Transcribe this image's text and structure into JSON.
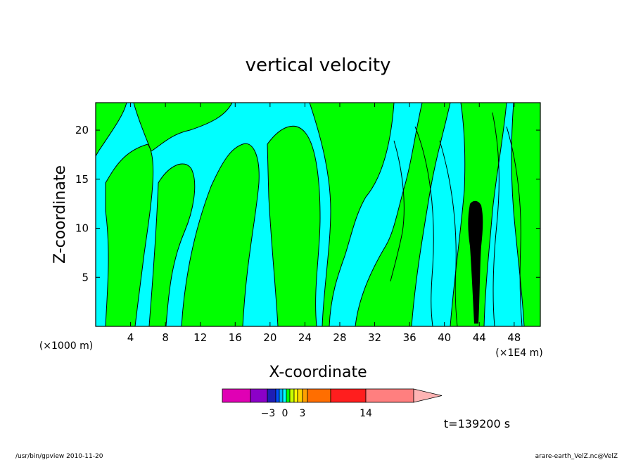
{
  "chart_data": {
    "type": "heatmap",
    "title": "vertical velocity",
    "xlabel": "X-coordinate",
    "ylabel": "Z-coordinate",
    "x_unit": "(×1E4 m)",
    "y_unit": "(×1000 m)",
    "xlim": [
      0,
      51
    ],
    "ylim": [
      0,
      22.8
    ],
    "x_ticks": [
      4,
      8,
      12,
      16,
      20,
      24,
      28,
      32,
      36,
      40,
      44,
      48
    ],
    "y_ticks": [
      5,
      10,
      15,
      20
    ],
    "colorbar": {
      "colors": [
        "#e000b4",
        "#8c00c8",
        "#1e1eb4",
        "#0050ff",
        "#00b4ff",
        "#00ffff",
        "#00ff00",
        "#c8ff00",
        "#ffff00",
        "#ffd200",
        "#ffa000",
        "#ff6e00",
        "#ff1e1e",
        "#ff7f7f",
        "#ffb4b4"
      ],
      "tick_labels": [
        "−3",
        "0",
        "3",
        "14"
      ],
      "tick_values": [
        -3,
        0,
        3,
        14
      ],
      "extend": "max"
    },
    "regions": [
      {
        "level": "negative",
        "color": "#00ffff"
      },
      {
        "level": "positive",
        "color": "#00ff00"
      }
    ],
    "time_label": "t=139200 s",
    "grid": false
  },
  "footer": {
    "left": "/usr/bin/gpview   2010-11-20",
    "right": "arare-earth_VelZ.nc@VelZ"
  }
}
